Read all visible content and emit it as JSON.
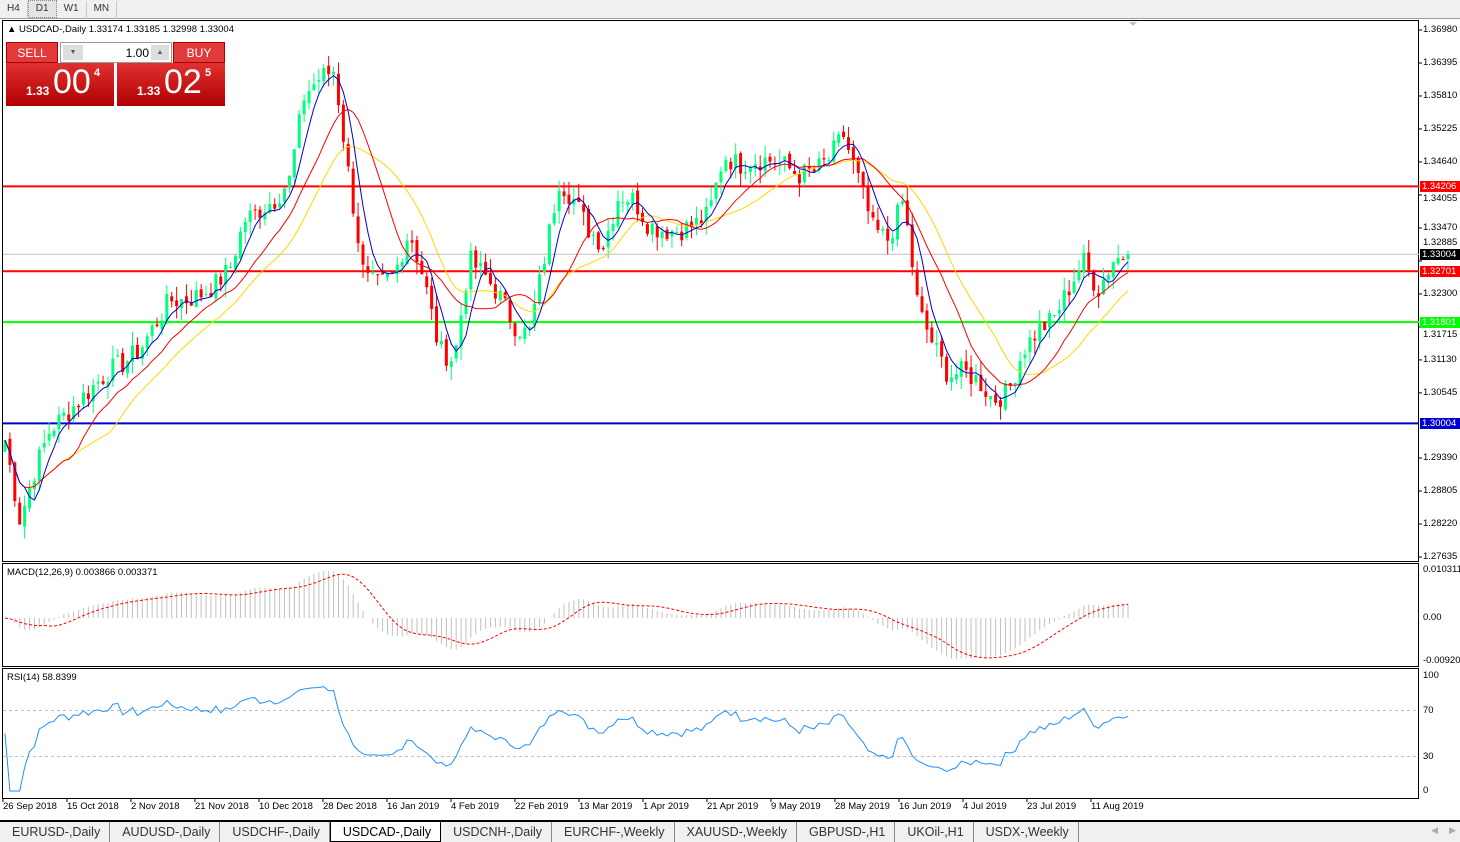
{
  "timeframes": [
    "H4",
    "D1",
    "W1",
    "MN"
  ],
  "active_timeframe": "D1",
  "chart": {
    "symbol_line": "USDCAD-,Daily  1.33174 1.33185 1.32998 1.33004"
  },
  "trade_panel": {
    "sell_label": "SELL",
    "buy_label": "BUY",
    "lots": "1.00",
    "bid": {
      "prefix": "1.33",
      "big": "00",
      "sup": "4"
    },
    "ask": {
      "prefix": "1.33",
      "big": "02",
      "sup": "5"
    }
  },
  "price_axis": [
    "1.36980",
    "1.36395",
    "1.35810",
    "1.35225",
    "1.34640",
    "1.34055",
    "1.33470",
    "1.32885",
    "1.32300",
    "1.31715",
    "1.31130",
    "1.30545",
    "1.29390",
    "1.28805",
    "1.28220",
    "1.27635"
  ],
  "levels": [
    {
      "label": "1.34206",
      "price": 1.34206,
      "color": "#ff0000"
    },
    {
      "label": "1.32701",
      "price": 1.32701,
      "color": "#ff0000"
    },
    {
      "label": "1.31801",
      "price": 1.31801,
      "color": "#00ff00"
    },
    {
      "label": "1.30004",
      "price": 1.30004,
      "color": "#0000cc"
    }
  ],
  "current_price": {
    "label": "1.33004",
    "price": 1.33004
  },
  "price_range": [
    1.27635,
    1.3698
  ],
  "closes": [
    1.2971,
    1.2829,
    1.2918,
    1.2989,
    1.3015,
    1.3042,
    1.3069,
    1.3095,
    1.3109,
    1.3131,
    1.3175,
    1.3219,
    1.3219,
    1.3228,
    1.3246,
    1.3273,
    1.3361,
    1.3379,
    1.3397,
    1.3432,
    1.3583,
    1.3613,
    1.3627,
    1.3432,
    1.3255,
    1.3246,
    1.3264,
    1.3343,
    1.3255,
    1.3131,
    1.3113,
    1.329,
    1.3264,
    1.3228,
    1.3175,
    1.3157,
    1.329,
    1.3432,
    1.3397,
    1.3343,
    1.3317,
    1.3406,
    1.3397,
    1.3352,
    1.3343,
    1.3343,
    1.3352,
    1.337,
    1.3476,
    1.3459,
    1.3468,
    1.3468,
    1.3459,
    1.3441,
    1.3446,
    1.3468,
    1.3512,
    1.3432,
    1.3343,
    1.3326,
    1.3397,
    1.3202,
    1.314,
    1.3086,
    1.3092,
    1.3077,
    1.3042,
    1.3056,
    1.3131,
    1.3166,
    1.3184,
    1.3237,
    1.329,
    1.3237,
    1.329,
    1.33
  ],
  "colors": {
    "bull": "#00ff7f",
    "bear": "#ff0000",
    "ma_fast": "#0000cc",
    "ma_mid": "#ff0000",
    "ma_slow": "#ffd700",
    "rsi": "#1e90ff",
    "macd_hist": "#c0c0c0",
    "macd_signal": "#ff0000"
  },
  "macd": {
    "label": "MACD(12,26,9) 0.003866 0.003371",
    "axis": [
      "0.010311",
      "0.00",
      "-0.009203"
    ]
  },
  "rsi": {
    "label": "RSI(14) 58.8399",
    "axis": [
      "100",
      "70",
      "30",
      "0"
    ]
  },
  "dates": [
    "26 Sep 2018",
    "15 Oct 2018",
    "2 Nov 2018",
    "21 Nov 2018",
    "10 Dec 2018",
    "28 Dec 2018",
    "16 Jan 2019",
    "4 Feb 2019",
    "22 Feb 2019",
    "13 Mar 2019",
    "1 Apr 2019",
    "21 Apr 2019",
    "9 May 2019",
    "28 May 2019",
    "16 Jun 2019",
    "4 Jul 2019",
    "23 Jul 2019",
    "11 Aug 2019"
  ],
  "tabs": [
    "EURUSD-,Daily",
    "AUDUSD-,Daily",
    "USDCHF-,Daily",
    "USDCAD-,Daily",
    "USDCNH-,Daily",
    "EURCHF-,Weekly",
    "XAUUSD-,Weekly",
    "GBPUSD-,H1",
    "UKOil-,H1",
    "USDX-,Weekly"
  ],
  "active_tab": "USDCAD-,Daily"
}
